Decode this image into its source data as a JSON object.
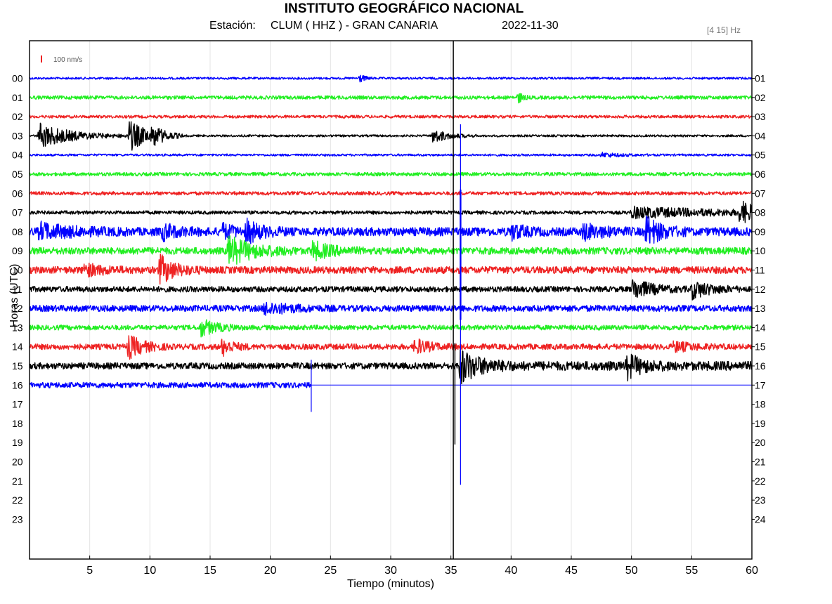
{
  "header": {
    "title": "INSTITUTO GEOGRÁFICO NACIONAL",
    "station_label": "Estación:",
    "station": "CLUM ( HHZ ) - GRAN CANARIA",
    "date": "2022-11-30",
    "filter": "[4 15] Hz"
  },
  "chart_data": {
    "type": "line",
    "title": "INSTITUTO GEOGRÁFICO NACIONAL",
    "xlabel": "Tiempo (minutos)",
    "ylabel": "Horas (UTC)",
    "xlim": [
      0,
      60
    ],
    "x_ticks": [
      5,
      10,
      15,
      20,
      25,
      30,
      35,
      40,
      45,
      50,
      55,
      60
    ],
    "left_hour_labels": [
      "00",
      "01",
      "02",
      "03",
      "04",
      "05",
      "06",
      "07",
      "08",
      "09",
      "10",
      "11",
      "12",
      "13",
      "14",
      "15",
      "16",
      "17",
      "18",
      "19",
      "20",
      "21",
      "22",
      "23"
    ],
    "right_hour_labels": [
      "01",
      "02",
      "03",
      "04",
      "05",
      "06",
      "07",
      "08",
      "09",
      "10",
      "11",
      "12",
      "13",
      "14",
      "15",
      "16",
      "17",
      "18",
      "19",
      "20",
      "21",
      "22",
      "23",
      "24"
    ],
    "scale_bar": "100 nm/s",
    "grid": true,
    "current_time_marker_min": 35.2,
    "data_end": {
      "hour": 16,
      "minute": 23.4
    },
    "series_colors": [
      "#0000ff",
      "#22ee22",
      "#ee2222",
      "#000000"
    ],
    "traces": [
      {
        "hour": "00",
        "noise": 1.5,
        "events": [
          {
            "t": 27.4,
            "amp": 6,
            "dur": 0.4
          }
        ]
      },
      {
        "hour": "01",
        "noise": 2.5,
        "events": [
          {
            "t": 40.6,
            "amp": 8,
            "dur": 0.3
          }
        ]
      },
      {
        "hour": "02",
        "noise": 2,
        "events": []
      },
      {
        "hour": "03",
        "noise": 1.5,
        "events": [
          {
            "t": 0.8,
            "amp": 18,
            "dur": 2.5
          },
          {
            "t": 8.3,
            "amp": 22,
            "dur": 1.5
          },
          {
            "t": 10.2,
            "amp": 12,
            "dur": 0.8
          },
          {
            "t": 33.5,
            "amp": 10,
            "dur": 1.2
          }
        ]
      },
      {
        "hour": "04",
        "noise": 1.5,
        "events": [
          {
            "t": 47.5,
            "amp": 3,
            "dur": 1.5
          }
        ]
      },
      {
        "hour": "05",
        "noise": 2.5,
        "events": []
      },
      {
        "hour": "06",
        "noise": 2.5,
        "events": []
      },
      {
        "hour": "07",
        "noise": 2.5,
        "events": [
          {
            "t": 50,
            "amp": 7,
            "dur": 8
          },
          {
            "t": 59,
            "amp": 14,
            "dur": 1.5
          }
        ]
      },
      {
        "hour": "08",
        "noise": 6,
        "events": [
          {
            "t": 0.8,
            "amp": 10,
            "dur": 2.5
          },
          {
            "t": 11,
            "amp": 10,
            "dur": 1.2
          },
          {
            "t": 16,
            "amp": 9,
            "dur": 1
          },
          {
            "t": 18,
            "amp": 14,
            "dur": 1.2
          },
          {
            "t": 40,
            "amp": 10,
            "dur": 1
          },
          {
            "t": 46,
            "amp": 10,
            "dur": 1.5
          },
          {
            "t": 51.2,
            "amp": 20,
            "dur": 1.2
          }
        ]
      },
      {
        "hour": "09",
        "noise": 5,
        "events": [
          {
            "t": 16.5,
            "amp": 20,
            "dur": 2
          },
          {
            "t": 23.5,
            "amp": 12,
            "dur": 1.5
          }
        ]
      },
      {
        "hour": "10",
        "noise": 5,
        "events": [
          {
            "t": 4.5,
            "amp": 8,
            "dur": 1.5
          },
          {
            "t": 10.8,
            "amp": 20,
            "dur": 1.2
          }
        ]
      },
      {
        "hour": "11",
        "noise": 4,
        "events": [
          {
            "t": 50.1,
            "amp": 14,
            "dur": 1.5
          },
          {
            "t": 55,
            "amp": 12,
            "dur": 1.5
          }
        ]
      },
      {
        "hour": "12",
        "noise": 4.5,
        "events": [
          {
            "t": 19.5,
            "amp": 8,
            "dur": 2
          }
        ]
      },
      {
        "hour": "13",
        "noise": 3.5,
        "events": [
          {
            "t": 14.2,
            "amp": 12,
            "dur": 1.2
          }
        ]
      },
      {
        "hour": "14",
        "noise": 4,
        "events": [
          {
            "t": 8.2,
            "amp": 16,
            "dur": 1.2
          },
          {
            "t": 16,
            "amp": 12,
            "dur": 0.8
          },
          {
            "t": 32,
            "amp": 10,
            "dur": 1.2
          },
          {
            "t": 53.5,
            "amp": 6,
            "dur": 1.5
          }
        ]
      },
      {
        "hour": "15",
        "noise": 4.5,
        "events": [
          {
            "t": 35.7,
            "amp": 24,
            "dur": 1.5
          },
          {
            "t": 49.6,
            "amp": 16,
            "dur": 1.2
          }
        ]
      },
      {
        "hour": "16",
        "noise": 4,
        "events": []
      }
    ],
    "large_event": {
      "t": 35.8,
      "hours": [
        "07",
        "08",
        "09",
        "10",
        "11",
        "12",
        "13"
      ]
    }
  }
}
